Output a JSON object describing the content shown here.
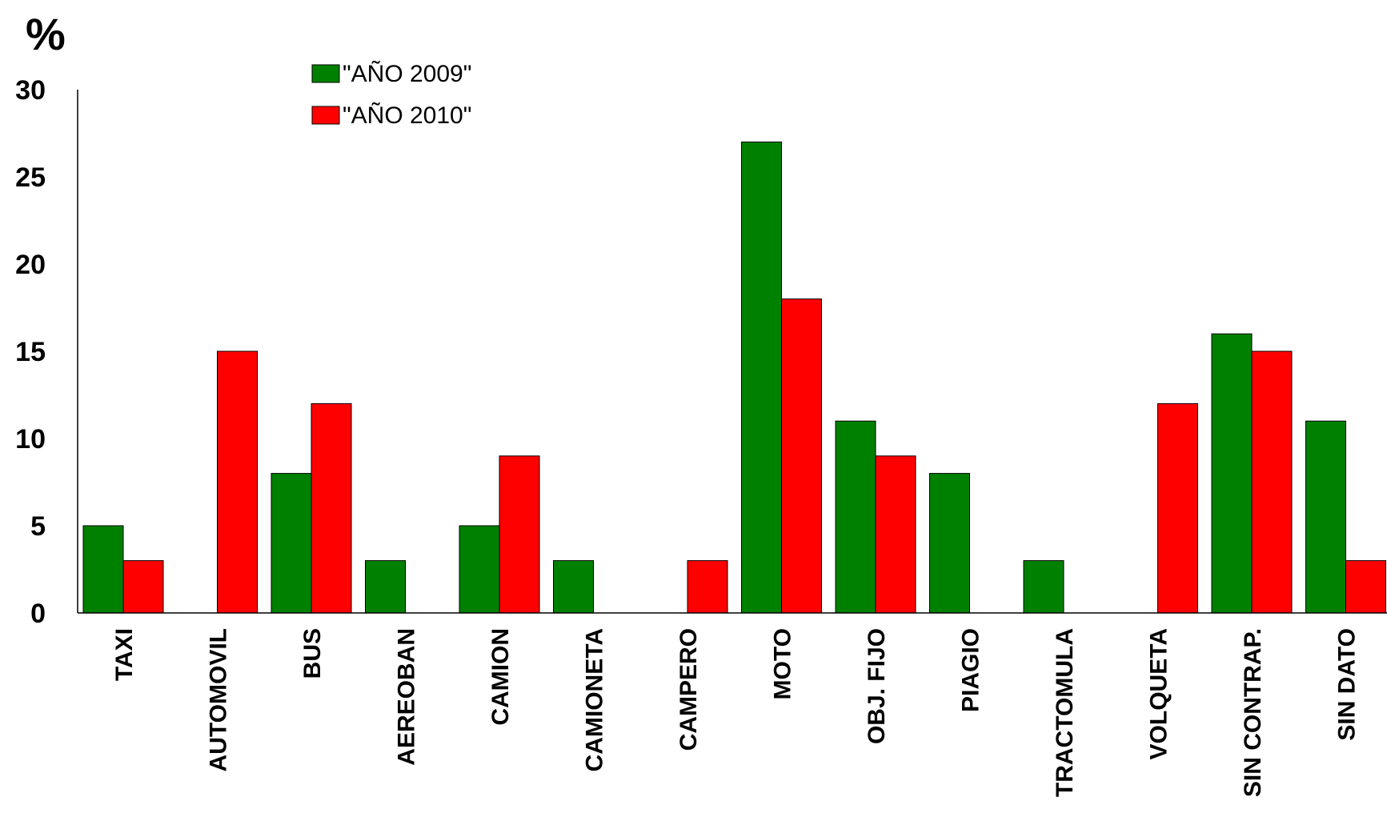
{
  "chart_data": {
    "type": "bar",
    "ylabel": "%",
    "ylim": [
      0,
      30
    ],
    "yticks": [
      0,
      5,
      10,
      15,
      20,
      25,
      30
    ],
    "grid": false,
    "legend_position": "top-left",
    "categories": [
      "TAXI",
      "AUTOMOVIL",
      "BUS",
      "AEREOBAN",
      "CAMION",
      "CAMIONETA",
      "CAMPERO",
      "MOTO",
      "OBJ. FIJO",
      "PIAGIO",
      "TRACTOMULA",
      "VOLQUETA",
      "SIN CONTRAP.",
      "SIN DATO"
    ],
    "series": [
      {
        "name": "\"AÑO 2009\"",
        "color": "#008000",
        "values": [
          5,
          0,
          8,
          3,
          5,
          3,
          0,
          27,
          11,
          8,
          3,
          0,
          16,
          11
        ]
      },
      {
        "name": "\"AÑO 2010\"",
        "color": "#ff0000",
        "values": [
          3,
          15,
          12,
          0,
          9,
          0,
          3,
          18,
          9,
          0,
          0,
          12,
          15,
          3
        ]
      }
    ]
  }
}
